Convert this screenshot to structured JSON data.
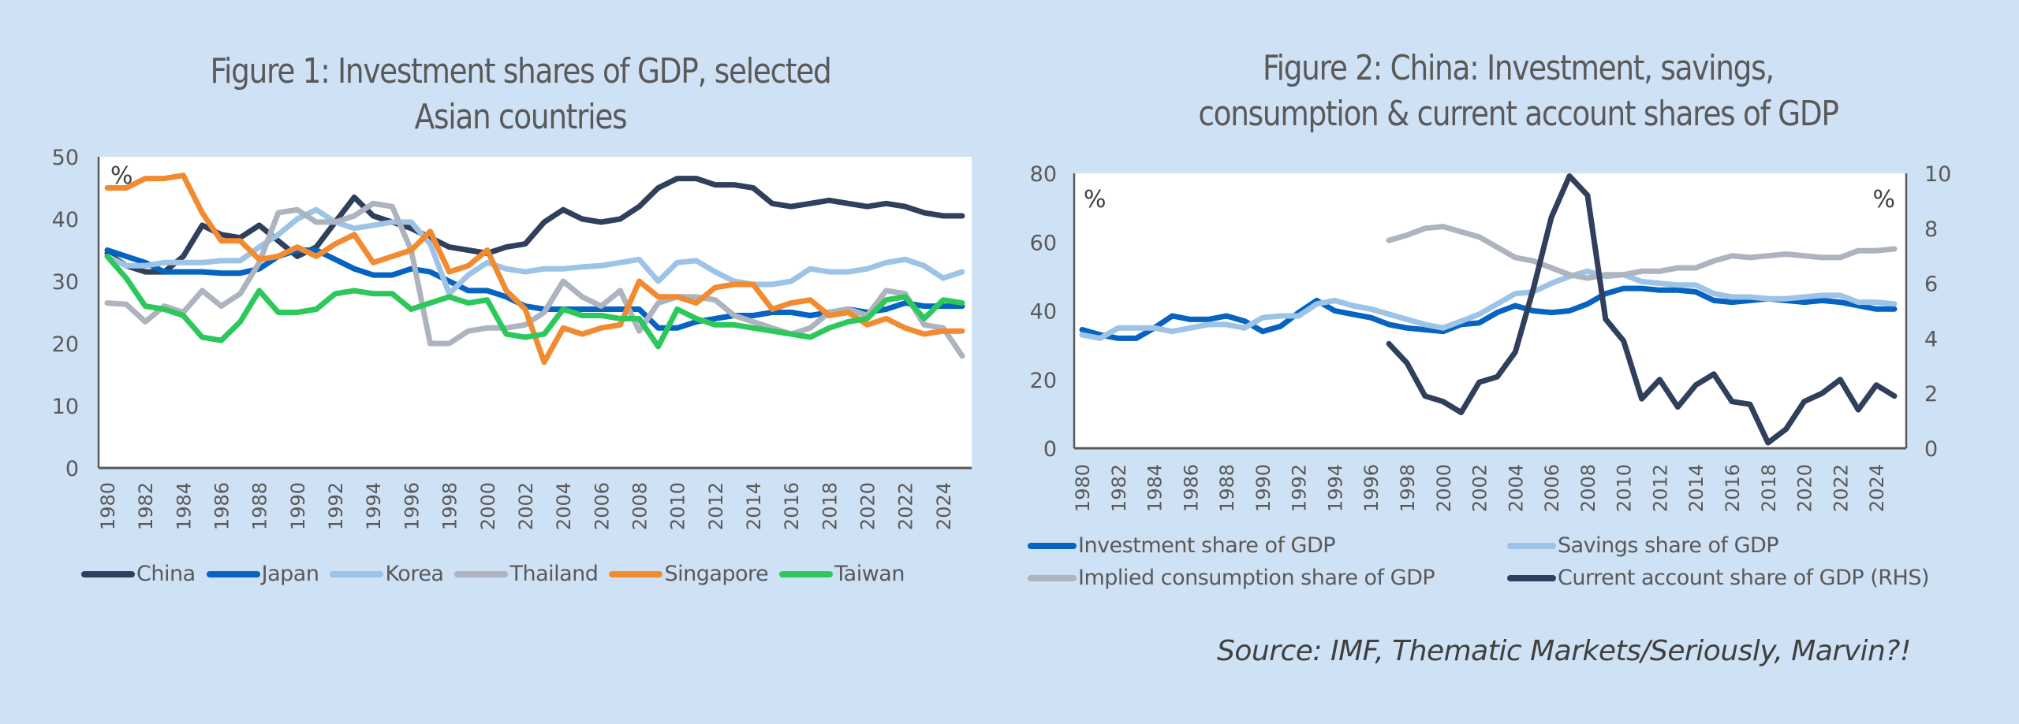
{
  "source": "Source: IMF, Thematic Markets/Seriously, Marvin?!",
  "chart_data": [
    {
      "type": "line",
      "title": "Figure 1: Investment shares of GDP, selected Asian countries",
      "xlabel": "",
      "ylabel": "%",
      "unit_label": "%",
      "ylim": [
        0,
        50
      ],
      "yticks": [
        0,
        10,
        20,
        30,
        40,
        50
      ],
      "x_start": 1980,
      "x_end": 2025,
      "xtick_labels": [
        "1980",
        "1982",
        "1984",
        "1986",
        "1988",
        "1990",
        "1992",
        "1994",
        "1996",
        "1998",
        "2000",
        "2002",
        "2004",
        "2006",
        "2008",
        "2010",
        "2012",
        "2014",
        "2016",
        "2018",
        "2020",
        "2022",
        "2024"
      ],
      "grid": false,
      "legend_position": "bottom",
      "series": [
        {
          "name": "China",
          "color": "#2f3f5c",
          "start": 1980,
          "values": [
            34.5,
            32.5,
            31.5,
            31.5,
            34,
            39,
            37.5,
            37,
            39,
            36.5,
            34,
            35.5,
            39.5,
            43.5,
            40.5,
            39.5,
            38.5,
            37,
            35.5,
            35,
            34.5,
            35.5,
            36,
            39.5,
            41.5,
            40,
            39.5,
            40,
            42,
            45,
            46.5,
            46.5,
            45.5,
            45.5,
            45,
            42.5,
            42,
            42.5,
            43,
            42.5,
            42,
            42.5,
            42,
            41,
            40.5,
            40.5
          ]
        },
        {
          "name": "Japan",
          "color": "#0563c1",
          "start": 1980,
          "values": [
            35,
            34,
            33,
            31.5,
            31.5,
            31.5,
            31.3,
            31.3,
            32,
            34,
            35,
            35,
            33.5,
            32,
            31,
            31,
            32,
            31.5,
            30,
            28.5,
            28.5,
            27.5,
            26,
            25.5,
            25.5,
            25.5,
            25.5,
            25.5,
            25.5,
            22.5,
            22.5,
            23.5,
            24,
            24.5,
            24.5,
            25,
            25,
            24.5,
            25,
            25.5,
            25,
            25.5,
            26.5,
            26,
            26,
            26
          ]
        },
        {
          "name": "Korea",
          "color": "#9dc3e6",
          "start": 1980,
          "values": [
            34,
            32.5,
            32.5,
            33,
            33,
            33,
            33.3,
            33.3,
            35.5,
            37.5,
            40,
            41.5,
            39.5,
            38.5,
            39,
            39.5,
            39.5,
            36,
            28,
            31,
            33,
            32,
            31.5,
            32,
            32,
            32.3,
            32.5,
            33,
            33.5,
            30,
            33,
            33.3,
            31.5,
            30,
            29.5,
            29.5,
            30,
            32,
            31.5,
            31.5,
            32,
            33,
            33.5,
            32.5,
            30.5,
            31.5
          ]
        },
        {
          "name": "Thailand",
          "color": "#adb3bf",
          "start": 1980,
          "values": [
            26.5,
            26.3,
            23.5,
            26,
            25,
            28.5,
            26,
            28,
            33,
            41,
            41.5,
            39.5,
            39.5,
            40.5,
            42.5,
            42,
            35,
            20,
            20,
            22,
            22.5,
            22.5,
            23,
            25,
            30,
            27.5,
            26,
            28.5,
            22,
            26.5,
            27.5,
            27.5,
            27,
            24.5,
            23.5,
            22.5,
            21.5,
            22.5,
            25,
            25.5,
            24.5,
            28.5,
            28,
            23,
            22.5,
            18
          ]
        },
        {
          "name": "Singapore",
          "color": "#f28b30",
          "start": 1980,
          "values": [
            45,
            45,
            46.5,
            46.5,
            47,
            41,
            36.5,
            36.5,
            33.5,
            34,
            35.5,
            34,
            36,
            37.5,
            33,
            34,
            35,
            38,
            31.5,
            32.5,
            35,
            28.5,
            25.5,
            17,
            22.5,
            21.5,
            22.5,
            23,
            30,
            27.5,
            27.5,
            26.5,
            29,
            29.5,
            29.5,
            25.5,
            26.5,
            27,
            24.5,
            25,
            23,
            24,
            22.5,
            21.5,
            22,
            22
          ]
        },
        {
          "name": "Taiwan",
          "color": "#2dc85c",
          "start": 1980,
          "values": [
            34,
            30.5,
            26,
            25.5,
            24.5,
            21,
            20.5,
            23.5,
            28.5,
            25,
            25,
            25.5,
            28,
            28.5,
            28,
            28,
            25.5,
            26.5,
            27.5,
            26.5,
            27,
            21.5,
            21,
            21.5,
            25.5,
            24.5,
            24.5,
            24,
            24,
            19.5,
            25.5,
            24,
            23,
            23,
            22.5,
            22,
            21.5,
            21,
            22.5,
            23.5,
            24,
            27,
            27.5,
            24,
            27,
            26.5
          ]
        }
      ]
    },
    {
      "type": "line",
      "title": "Figure 2: China: Investment, savings, consumption & current account shares of GDP",
      "xlabel": "",
      "ylabel": "%",
      "y2label": "%",
      "unit_label_left": "%",
      "unit_label_right": "%",
      "ylim": [
        0,
        80
      ],
      "y2lim": [
        0,
        10
      ],
      "yticks": [
        0,
        20,
        40,
        60,
        80
      ],
      "y2ticks": [
        0,
        2,
        4,
        6,
        8,
        10
      ],
      "x_start": 1980,
      "x_end": 2025,
      "xtick_labels": [
        "1980",
        "1982",
        "1984",
        "1986",
        "1988",
        "1990",
        "1992",
        "1994",
        "1996",
        "1998",
        "2000",
        "2002",
        "2004",
        "2006",
        "2008",
        "2010",
        "2012",
        "2014",
        "2016",
        "2018",
        "2020",
        "2022",
        "2024"
      ],
      "grid": false,
      "legend_position": "bottom",
      "series": [
        {
          "name": "Investment share of GDP",
          "axis": "left",
          "color": "#0563c1",
          "start": 1980,
          "values": [
            34.5,
            33,
            32,
            32,
            35,
            38.5,
            37.5,
            37.5,
            38.5,
            37,
            34,
            35.5,
            39.5,
            43,
            40,
            39,
            38,
            36,
            35,
            34.5,
            34,
            36,
            36.5,
            39.5,
            41.5,
            40,
            39.5,
            40,
            42,
            45,
            46.5,
            46.5,
            46,
            46,
            45.5,
            43,
            42.5,
            43,
            43.5,
            43,
            42.5,
            43,
            42.5,
            41.5,
            40.5,
            40.5
          ]
        },
        {
          "name": "Savings share of GDP",
          "axis": "left",
          "color": "#9dc3e6",
          "start": 1980,
          "values": [
            33,
            32,
            35,
            35,
            35,
            34,
            35,
            36,
            36,
            35,
            38,
            38.5,
            38.5,
            42,
            43,
            41.5,
            40.5,
            39,
            37.5,
            36,
            35,
            37,
            39,
            42,
            45,
            45.5,
            48,
            50,
            51.5,
            50,
            50.5,
            48.5,
            48,
            47.5,
            47.5,
            45,
            44,
            44,
            43.5,
            43.5,
            44,
            44.5,
            44.5,
            42.5,
            42.5,
            42
          ]
        },
        {
          "name": "Implied consumption share of GDP",
          "axis": "left",
          "color": "#adb3bf",
          "start": 1997,
          "values": [
            60.5,
            62,
            64,
            64.5,
            63,
            61.5,
            58.5,
            55.5,
            54.5,
            52.5,
            50.5,
            49.5,
            50.5,
            50.5,
            51.5,
            51.5,
            52.5,
            52.5,
            54.5,
            56,
            55.5,
            56,
            56.5,
            56,
            55.5,
            55.5,
            57.5,
            57.5,
            58
          ]
        },
        {
          "name": "Current account share of GDP (RHS)",
          "axis": "right",
          "color": "#2f3f5c",
          "start": 1997,
          "values": [
            3.8,
            3.1,
            1.9,
            1.7,
            1.3,
            2.4,
            2.6,
            3.5,
            5.8,
            8.4,
            9.9,
            9.2,
            4.7,
            3.9,
            1.8,
            2.5,
            1.5,
            2.3,
            2.7,
            1.7,
            1.6,
            0.2,
            0.7,
            1.7,
            2.0,
            2.5,
            1.4,
            2.3,
            1.9
          ]
        }
      ]
    }
  ]
}
